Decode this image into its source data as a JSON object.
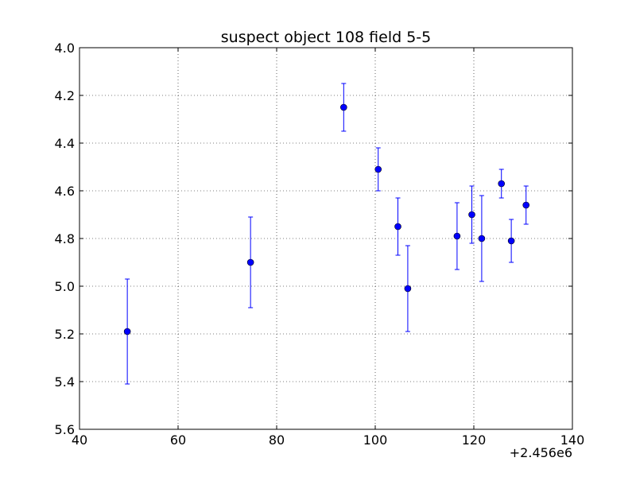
{
  "chart_data": {
    "type": "scatter",
    "title": "suspect object 108 field 5-5",
    "xlabel": "",
    "ylabel": "",
    "x_offset_label": "+2.456e6",
    "xlim": [
      40,
      140
    ],
    "ylim": [
      4.0,
      5.6
    ],
    "y_inverted": true,
    "grid": true,
    "x_ticks": [
      "40",
      "60",
      "80",
      "100",
      "120",
      "140"
    ],
    "y_ticks": [
      "4.0",
      "4.2",
      "4.4",
      "4.6",
      "4.8",
      "5.0",
      "5.2",
      "5.4",
      "5.6"
    ],
    "series": [
      {
        "color": "#0000ff",
        "marker": "circle",
        "error_bars": true,
        "points": [
          {
            "x": 49.7,
            "y": 5.19,
            "yerr": 0.22
          },
          {
            "x": 74.7,
            "y": 4.9,
            "yerr": 0.19
          },
          {
            "x": 93.6,
            "y": 4.25,
            "yerr": 0.1
          },
          {
            "x": 100.6,
            "y": 4.51,
            "yerr": 0.09
          },
          {
            "x": 104.6,
            "y": 4.75,
            "yerr": 0.12
          },
          {
            "x": 106.6,
            "y": 5.01,
            "yerr": 0.18
          },
          {
            "x": 116.6,
            "y": 4.79,
            "yerr": 0.14
          },
          {
            "x": 119.6,
            "y": 4.7,
            "yerr": 0.12
          },
          {
            "x": 121.6,
            "y": 4.8,
            "yerr": 0.18
          },
          {
            "x": 125.6,
            "y": 4.57,
            "yerr": 0.06
          },
          {
            "x": 127.6,
            "y": 4.81,
            "yerr": 0.09
          },
          {
            "x": 130.6,
            "y": 4.66,
            "yerr": 0.08
          }
        ]
      }
    ]
  }
}
